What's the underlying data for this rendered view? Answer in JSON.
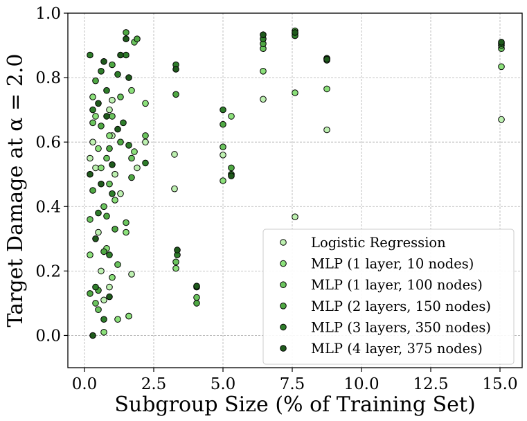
{
  "chart_data": {
    "type": "scatter",
    "title": "",
    "xlabel": "Subgroup Size (% of Training Set)",
    "ylabel": "Target Damage at α = 2.0",
    "xlim": [
      -0.6,
      15.8
    ],
    "ylim": [
      -0.1,
      1.0
    ],
    "xticks": [
      0.0,
      2.5,
      5.0,
      7.5,
      10.0,
      12.5,
      15.0
    ],
    "xtick_labels": [
      "0.0",
      "2.5",
      "5.0",
      "7.5",
      "10.0",
      "12.5",
      "15.0"
    ],
    "yticks": [
      0.0,
      0.2,
      0.4,
      0.6,
      0.8,
      1.0
    ],
    "ytick_labels": [
      "0.0",
      "0.2",
      "0.4",
      "0.6",
      "0.8",
      "1.0"
    ],
    "grid": true,
    "legend_position": "lower-right",
    "series": [
      {
        "name": "Logistic Regression",
        "color": "#bdf0b0",
        "points": [
          [
            0.2,
            0.55
          ],
          [
            0.3,
            0.6
          ],
          [
            0.4,
            0.52
          ],
          [
            0.5,
            0.32
          ],
          [
            0.6,
            0.2
          ],
          [
            0.7,
            0.11
          ],
          [
            0.9,
            0.7
          ],
          [
            0.9,
            0.15
          ],
          [
            1.0,
            0.73
          ],
          [
            1.0,
            0.62
          ],
          [
            1.1,
            0.5
          ],
          [
            1.3,
            0.44
          ],
          [
            1.6,
            0.06
          ],
          [
            1.7,
            0.19
          ],
          [
            1.9,
            0.52
          ],
          [
            2.2,
            0.6
          ],
          [
            3.25,
            0.455
          ],
          [
            3.25,
            0.562
          ],
          [
            5.0,
            0.56
          ],
          [
            6.45,
            0.733
          ],
          [
            7.6,
            0.368
          ],
          [
            8.75,
            0.638
          ],
          [
            15.05,
            0.67
          ]
        ]
      },
      {
        "name": "MLP (1 layer, 10 nodes)",
        "color": "#8be07a",
        "points": [
          [
            0.2,
            0.25
          ],
          [
            0.3,
            0.74
          ],
          [
            0.4,
            0.68
          ],
          [
            0.5,
            0.58
          ],
          [
            0.6,
            0.52
          ],
          [
            0.7,
            0.01
          ],
          [
            0.8,
            0.27
          ],
          [
            0.9,
            0.62
          ],
          [
            1.0,
            0.18
          ],
          [
            1.1,
            0.42
          ],
          [
            1.2,
            0.05
          ],
          [
            1.5,
            0.32
          ],
          [
            1.6,
            0.06
          ],
          [
            1.7,
            0.76
          ],
          [
            1.8,
            0.57
          ],
          [
            2.2,
            0.72
          ],
          [
            3.3,
            0.208
          ],
          [
            5.0,
            0.48
          ],
          [
            5.3,
            0.68
          ],
          [
            6.45,
            0.82
          ],
          [
            7.6,
            0.753
          ],
          [
            8.75,
            0.765
          ],
          [
            15.05,
            0.834
          ]
        ]
      },
      {
        "name": "MLP (1 layer, 100 nodes)",
        "color": "#6bc45e",
        "points": [
          [
            0.2,
            0.36
          ],
          [
            0.3,
            0.66
          ],
          [
            0.4,
            0.1
          ],
          [
            0.5,
            0.08
          ],
          [
            0.7,
            0.4
          ],
          [
            0.8,
            0.55
          ],
          [
            0.9,
            0.47
          ],
          [
            1.0,
            0.68
          ],
          [
            1.2,
            0.22
          ],
          [
            1.3,
            0.74
          ],
          [
            1.5,
            0.35
          ],
          [
            1.7,
            0.55
          ],
          [
            1.8,
            0.91
          ],
          [
            2.2,
            0.62
          ],
          [
            3.3,
            0.228
          ],
          [
            4.05,
            0.118
          ],
          [
            5.0,
            0.585
          ],
          [
            6.45,
            0.89
          ],
          [
            7.6,
            0.937
          ],
          [
            8.75,
            0.858
          ],
          [
            15.05,
            0.89
          ]
        ]
      },
      {
        "name": "MLP (2 layers, 150 nodes)",
        "color": "#4fa843",
        "points": [
          [
            0.2,
            0.13
          ],
          [
            0.3,
            0.45
          ],
          [
            0.4,
            0.79
          ],
          [
            0.5,
            0.14
          ],
          [
            0.6,
            0.65
          ],
          [
            0.7,
            0.26
          ],
          [
            0.8,
            0.37
          ],
          [
            0.9,
            0.58
          ],
          [
            1.0,
            0.84
          ],
          [
            1.1,
            0.33
          ],
          [
            1.3,
            0.6
          ],
          [
            1.5,
            0.94
          ],
          [
            1.7,
            0.49
          ],
          [
            1.9,
            0.92
          ],
          [
            3.3,
            0.748
          ],
          [
            4.05,
            0.1
          ],
          [
            5.0,
            0.655
          ],
          [
            5.3,
            0.52
          ],
          [
            6.45,
            0.905
          ],
          [
            7.6,
            0.945
          ],
          [
            8.75,
            0.854
          ],
          [
            15.05,
            0.9
          ]
        ]
      },
      {
        "name": "MLP (3 layers, 350 nodes)",
        "color": "#2e7d2a",
        "points": [
          [
            0.2,
            0.87
          ],
          [
            0.3,
            0.7
          ],
          [
            0.4,
            0.15
          ],
          [
            0.5,
            0.38
          ],
          [
            0.6,
            0.82
          ],
          [
            0.7,
            0.05
          ],
          [
            0.8,
            0.76
          ],
          [
            0.9,
            0.25
          ],
          [
            1.0,
            0.44
          ],
          [
            1.2,
            0.81
          ],
          [
            1.4,
            0.66
          ],
          [
            1.5,
            0.87
          ],
          [
            1.6,
            0.59
          ],
          [
            2.2,
            0.535
          ],
          [
            3.3,
            0.84
          ],
          [
            3.35,
            0.25
          ],
          [
            4.05,
            0.15
          ],
          [
            5.0,
            0.7
          ],
          [
            5.3,
            0.5
          ],
          [
            6.45,
            0.92
          ],
          [
            7.6,
            0.93
          ],
          [
            8.75,
            0.86
          ],
          [
            15.05,
            0.905
          ]
        ]
      },
      {
        "name": "MLP (4 layer, 375 nodes)",
        "color": "#1f5a1c",
        "points": [
          [
            0.2,
            0.5
          ],
          [
            0.3,
            0.0
          ],
          [
            0.4,
            0.3
          ],
          [
            0.5,
            0.72
          ],
          [
            0.6,
            0.47
          ],
          [
            0.7,
            0.85
          ],
          [
            0.8,
            0.68
          ],
          [
            0.9,
            0.12
          ],
          [
            1.0,
            0.53
          ],
          [
            1.2,
            0.64
          ],
          [
            1.3,
            0.87
          ],
          [
            1.5,
            0.92
          ],
          [
            1.6,
            0.8
          ],
          [
            3.3,
            0.826
          ],
          [
            3.35,
            0.265
          ],
          [
            4.05,
            0.153
          ],
          [
            5.3,
            0.495
          ],
          [
            6.45,
            0.933
          ],
          [
            7.6,
            0.94
          ],
          [
            8.75,
            0.857
          ],
          [
            15.05,
            0.91
          ]
        ]
      }
    ]
  }
}
